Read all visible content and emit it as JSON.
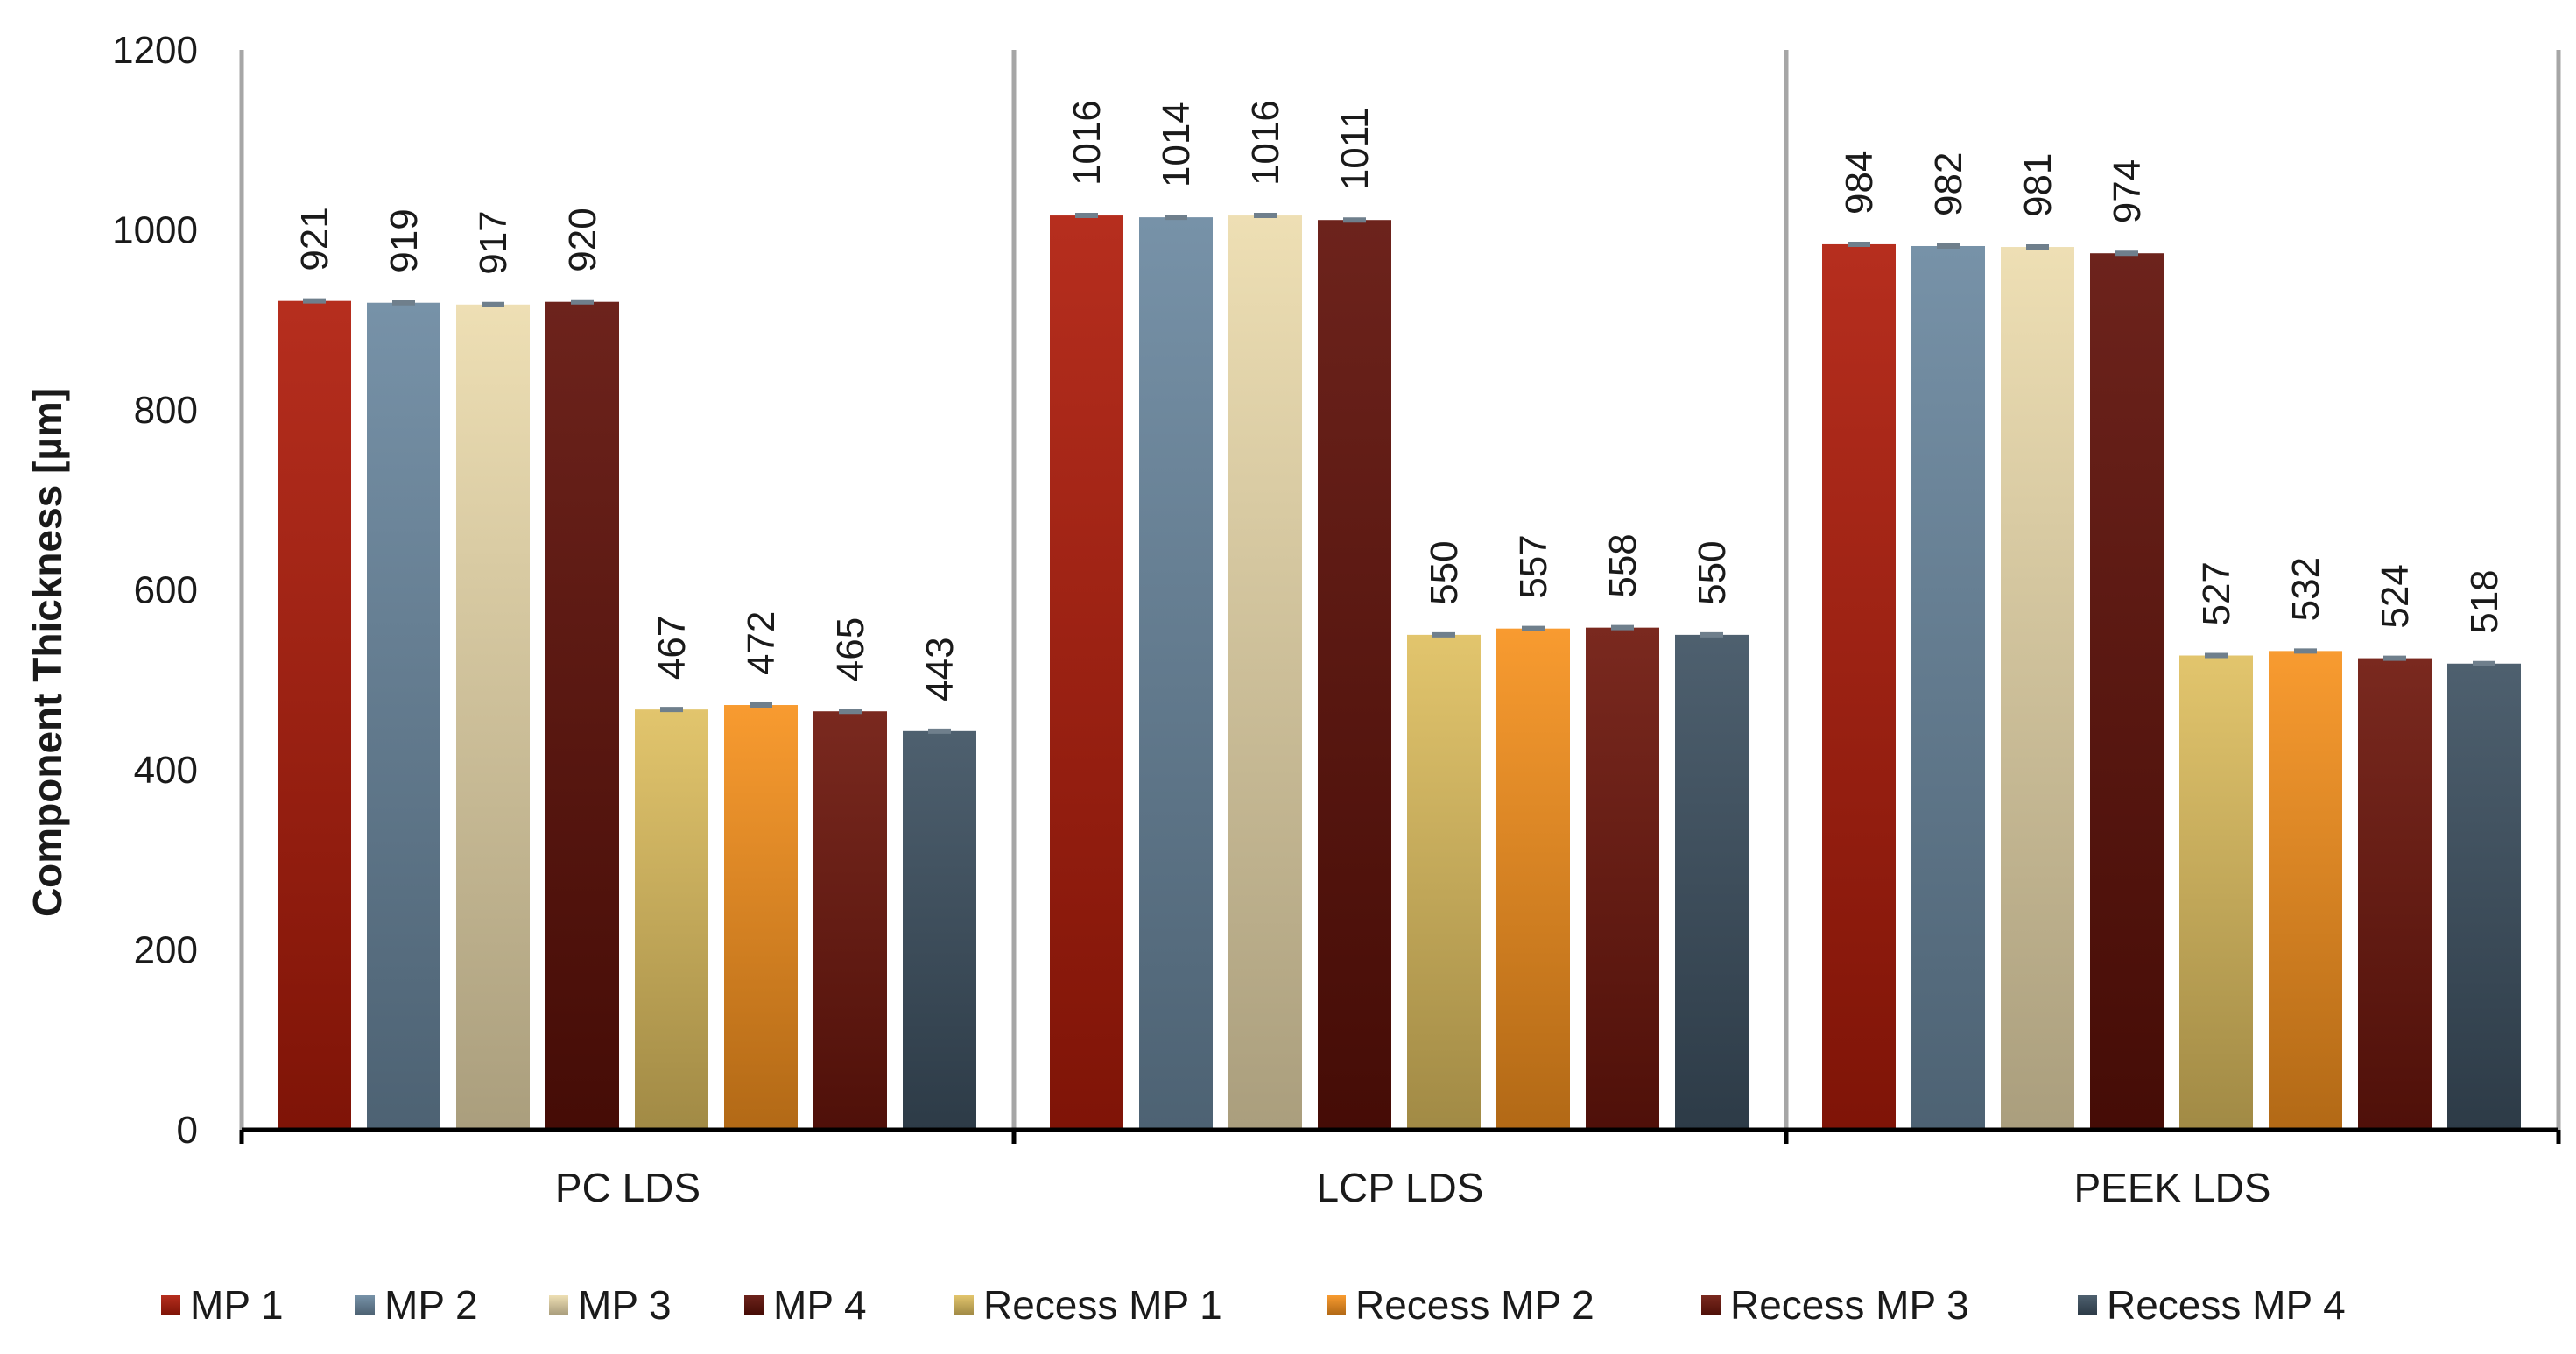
{
  "chart_data": {
    "type": "bar",
    "title": "",
    "xlabel": "",
    "ylabel": "Component Thickness [µm]",
    "ylim": [
      0,
      1200
    ],
    "yticks": [
      "0",
      "200",
      "400",
      "600",
      "800",
      "1000",
      "1200"
    ],
    "categories": [
      "PC LDS",
      "LCP LDS",
      "PEEK LDS"
    ],
    "legend_position": "bottom",
    "series": [
      {
        "name": "MP 1",
        "color": "#b01c0a",
        "values": [
          921,
          1016,
          984
        ],
        "labels": [
          "921",
          "1016",
          "984"
        ]
      },
      {
        "name": "MP 2",
        "color": "#6b88a0",
        "values": [
          919,
          1014,
          982
        ],
        "labels": [
          "919",
          "1014",
          "982"
        ]
      },
      {
        "name": "MP 3",
        "color": "#ecdcae",
        "values": [
          917,
          1016,
          981
        ],
        "labels": [
          "917",
          "1016",
          "981"
        ]
      },
      {
        "name": "MP 4",
        "color": "#601008",
        "values": [
          920,
          1011,
          974
        ],
        "labels": [
          "920",
          "1011",
          "974"
        ]
      },
      {
        "name": "Recess MP 1",
        "color": "#dfc060",
        "values": [
          467,
          550,
          527
        ],
        "labels": [
          "467",
          "550",
          "527"
        ]
      },
      {
        "name": "Recess MP 2",
        "color": "#f7921e",
        "values": [
          472,
          557,
          532
        ],
        "labels": [
          "472",
          "557",
          "532"
        ]
      },
      {
        "name": "Recess MP 3",
        "color": "#6e160c",
        "values": [
          465,
          558,
          524
        ],
        "labels": [
          "465",
          "558",
          "524"
        ]
      },
      {
        "name": "Recess MP 4",
        "color": "#3f5263",
        "values": [
          443,
          550,
          518
        ],
        "labels": [
          "443",
          "550",
          "518"
        ]
      }
    ]
  }
}
